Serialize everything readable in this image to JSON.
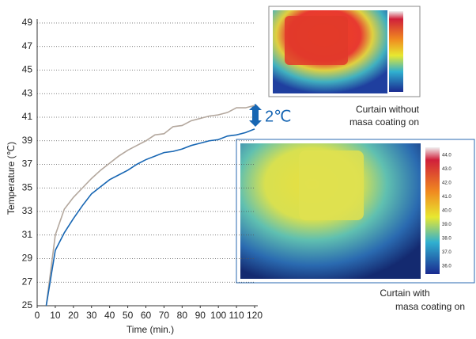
{
  "chart_data": {
    "type": "line",
    "x": [
      5,
      10,
      15,
      20,
      25,
      30,
      35,
      40,
      45,
      50,
      55,
      60,
      65,
      70,
      75,
      80,
      85,
      90,
      95,
      100,
      105,
      110,
      115,
      120
    ],
    "series": [
      {
        "color": "#b3a79d",
        "values": [
          25,
          31,
          33.2,
          34.2,
          35,
          35.8,
          36.5,
          37.1,
          37.7,
          38.2,
          38.6,
          39,
          39.5,
          39.6,
          40.2,
          40.3,
          40.7,
          40.9,
          41.1,
          41.2,
          41.4,
          41.8,
          41.8,
          42
        ]
      },
      {
        "color": "#1766b3",
        "values": [
          25,
          29.7,
          31.2,
          32.4,
          33.5,
          34.5,
          35.1,
          35.7,
          36.1,
          36.5,
          37,
          37.4,
          37.7,
          38,
          38.1,
          38.3,
          38.6,
          38.8,
          39,
          39.1,
          39.4,
          39.5,
          39.7,
          40
        ]
      }
    ],
    "xlabel": "Time (min.)",
    "ylabel": "Temperature (℃)",
    "xlim": [
      0,
      120
    ],
    "xticks": [
      0,
      10,
      20,
      30,
      40,
      50,
      60,
      70,
      80,
      90,
      100,
      110,
      120
    ],
    "ylim": [
      25,
      49
    ],
    "yticks": [
      25,
      27,
      29,
      31,
      33,
      35,
      37,
      39,
      41,
      43,
      45,
      47,
      49
    ],
    "grid": true,
    "annotations": {
      "difference": "2℃",
      "without_1": "Curtain without",
      "without_2": "masa coating  on",
      "with_1": "Curtain with",
      "with_2": "masa coating on"
    },
    "thermal_scale": [
      "44.0",
      "43.0",
      "42.0",
      "41.0",
      "40.0",
      "39.0",
      "38.0",
      "37.0",
      "36.0"
    ]
  }
}
